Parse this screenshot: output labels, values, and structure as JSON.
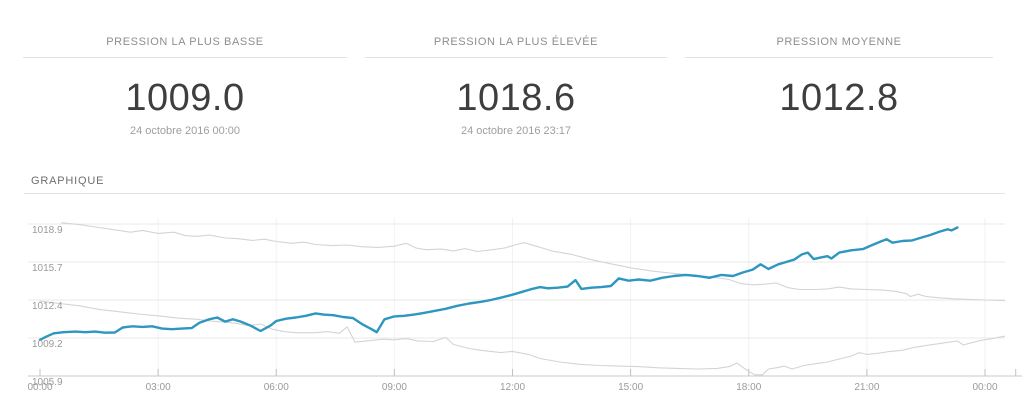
{
  "stats": [
    {
      "title": "PRESSION LA PLUS BASSE",
      "value": "1009.0",
      "date": "24 octobre 2016 00:00"
    },
    {
      "title": "PRESSION LA PLUS ÉLEVÉE",
      "value": "1018.6",
      "date": "24 octobre 2016 23:17"
    },
    {
      "title": "PRESSION MOYENNE",
      "value": "1012.8",
      "date": ""
    }
  ],
  "section": {
    "title": "GRAPHIQUE"
  },
  "colors": {
    "accent_line": "#2e96bf",
    "band_line": "#d4d4d4",
    "grid_h": "#e8e8e8",
    "grid_v": "#f2f2f2",
    "axis": "#c9c9c9",
    "tick": "#c0c0c0",
    "axis_text": "#9a9a9a"
  },
  "chart_data": {
    "type": "line",
    "title": "GRAPHIQUE",
    "xlabel": "",
    "ylabel": "",
    "grid": true,
    "legend": "none",
    "xlim_hours": [
      -0.3,
      24.9
    ],
    "ylim": [
      1005.9,
      1019.3
    ],
    "x_ticks": [
      {
        "hour": 0,
        "label": "00:00"
      },
      {
        "hour": 3,
        "label": "03:00"
      },
      {
        "hour": 6,
        "label": "06:00"
      },
      {
        "hour": 9,
        "label": "09:00"
      },
      {
        "hour": 12,
        "label": "12:00"
      },
      {
        "hour": 15,
        "label": "15:00"
      },
      {
        "hour": 18,
        "label": "18:00"
      },
      {
        "hour": 21,
        "label": "21:00"
      },
      {
        "hour": 24,
        "label": "00:00"
      },
      {
        "hour": 24.78,
        "label": ""
      }
    ],
    "y_ticks": [
      {
        "value": 1018.9,
        "label": "1018.9"
      },
      {
        "value": 1015.65,
        "label": "1015.7"
      },
      {
        "value": 1012.4,
        "label": "1012.4"
      },
      {
        "value": 1009.15,
        "label": "1009.2"
      },
      {
        "value": 1005.9,
        "label": "1005.9"
      }
    ],
    "series": [
      {
        "name": "pression",
        "role": "main",
        "color": "#2e96bf",
        "stroke_width": 2.4,
        "points": [
          [
            0,
            1009.0
          ],
          [
            0.15,
            1009.25
          ],
          [
            0.35,
            1009.55
          ],
          [
            0.6,
            1009.65
          ],
          [
            0.9,
            1009.7
          ],
          [
            1.15,
            1009.65
          ],
          [
            1.4,
            1009.7
          ],
          [
            1.65,
            1009.6
          ],
          [
            1.9,
            1009.62
          ],
          [
            2.1,
            1010.05
          ],
          [
            2.35,
            1010.15
          ],
          [
            2.6,
            1010.1
          ],
          [
            2.85,
            1010.15
          ],
          [
            3.1,
            1009.95
          ],
          [
            3.35,
            1009.9
          ],
          [
            3.6,
            1009.95
          ],
          [
            3.85,
            1010.0
          ],
          [
            4.05,
            1010.45
          ],
          [
            4.3,
            1010.75
          ],
          [
            4.5,
            1010.9
          ],
          [
            4.7,
            1010.55
          ],
          [
            4.9,
            1010.75
          ],
          [
            5.1,
            1010.55
          ],
          [
            5.35,
            1010.2
          ],
          [
            5.6,
            1009.75
          ],
          [
            5.85,
            1010.2
          ],
          [
            6.0,
            1010.6
          ],
          [
            6.25,
            1010.8
          ],
          [
            6.5,
            1010.9
          ],
          [
            6.75,
            1011.05
          ],
          [
            7.0,
            1011.25
          ],
          [
            7.2,
            1011.15
          ],
          [
            7.45,
            1011.1
          ],
          [
            7.7,
            1010.95
          ],
          [
            7.95,
            1010.85
          ],
          [
            8.2,
            1010.3
          ],
          [
            8.45,
            1009.85
          ],
          [
            8.55,
            1009.65
          ],
          [
            8.75,
            1010.75
          ],
          [
            9.0,
            1011.0
          ],
          [
            9.25,
            1011.05
          ],
          [
            9.5,
            1011.15
          ],
          [
            9.75,
            1011.3
          ],
          [
            10.0,
            1011.45
          ],
          [
            10.3,
            1011.65
          ],
          [
            10.6,
            1011.9
          ],
          [
            10.9,
            1012.1
          ],
          [
            11.2,
            1012.25
          ],
          [
            11.45,
            1012.4
          ],
          [
            11.7,
            1012.6
          ],
          [
            12.0,
            1012.85
          ],
          [
            12.25,
            1013.1
          ],
          [
            12.5,
            1013.35
          ],
          [
            12.7,
            1013.5
          ],
          [
            12.9,
            1013.4
          ],
          [
            13.15,
            1013.45
          ],
          [
            13.4,
            1013.55
          ],
          [
            13.6,
            1014.1
          ],
          [
            13.75,
            1013.35
          ],
          [
            14.0,
            1013.45
          ],
          [
            14.25,
            1013.5
          ],
          [
            14.5,
            1013.6
          ],
          [
            14.7,
            1014.25
          ],
          [
            14.95,
            1014.05
          ],
          [
            15.2,
            1014.15
          ],
          [
            15.5,
            1014.05
          ],
          [
            15.8,
            1014.3
          ],
          [
            16.1,
            1014.45
          ],
          [
            16.4,
            1014.55
          ],
          [
            16.7,
            1014.45
          ],
          [
            17.0,
            1014.3
          ],
          [
            17.3,
            1014.55
          ],
          [
            17.6,
            1014.45
          ],
          [
            17.85,
            1014.75
          ],
          [
            18.1,
            1015.0
          ],
          [
            18.3,
            1015.45
          ],
          [
            18.5,
            1015.05
          ],
          [
            18.75,
            1015.45
          ],
          [
            18.95,
            1015.65
          ],
          [
            19.15,
            1015.85
          ],
          [
            19.35,
            1016.3
          ],
          [
            19.5,
            1016.45
          ],
          [
            19.65,
            1015.9
          ],
          [
            19.85,
            1016.05
          ],
          [
            20.0,
            1016.15
          ],
          [
            20.1,
            1015.95
          ],
          [
            20.3,
            1016.45
          ],
          [
            20.6,
            1016.65
          ],
          [
            20.9,
            1016.75
          ],
          [
            21.1,
            1017.05
          ],
          [
            21.35,
            1017.4
          ],
          [
            21.5,
            1017.6
          ],
          [
            21.65,
            1017.3
          ],
          [
            21.9,
            1017.45
          ],
          [
            22.15,
            1017.5
          ],
          [
            22.35,
            1017.7
          ],
          [
            22.6,
            1017.95
          ],
          [
            22.85,
            1018.25
          ],
          [
            23.05,
            1018.45
          ],
          [
            23.15,
            1018.35
          ],
          [
            23.3,
            1018.6
          ]
        ]
      },
      {
        "name": "bande-superieure",
        "role": "upper-band",
        "color": "#d4d4d4",
        "stroke_width": 1.1,
        "points": [
          [
            0.55,
            1019.0
          ],
          [
            1.0,
            1018.85
          ],
          [
            1.5,
            1018.6
          ],
          [
            2.0,
            1018.35
          ],
          [
            2.3,
            1018.2
          ],
          [
            2.6,
            1018.35
          ],
          [
            3.0,
            1018.1
          ],
          [
            3.4,
            1018.2
          ],
          [
            3.7,
            1017.9
          ],
          [
            4.0,
            1017.85
          ],
          [
            4.3,
            1017.95
          ],
          [
            4.7,
            1017.7
          ],
          [
            5.0,
            1017.65
          ],
          [
            5.4,
            1017.5
          ],
          [
            5.7,
            1017.6
          ],
          [
            6.0,
            1017.4
          ],
          [
            6.4,
            1017.25
          ],
          [
            6.7,
            1017.35
          ],
          [
            7.0,
            1017.15
          ],
          [
            7.4,
            1017.05
          ],
          [
            7.8,
            1017.1
          ],
          [
            8.2,
            1016.95
          ],
          [
            8.6,
            1016.9
          ],
          [
            9.0,
            1017.0
          ],
          [
            9.3,
            1017.25
          ],
          [
            9.55,
            1016.85
          ],
          [
            9.8,
            1016.7
          ],
          [
            10.2,
            1016.75
          ],
          [
            10.5,
            1016.6
          ],
          [
            10.8,
            1016.8
          ],
          [
            11.1,
            1016.55
          ],
          [
            11.5,
            1016.7
          ],
          [
            11.8,
            1016.85
          ],
          [
            12.1,
            1017.15
          ],
          [
            12.3,
            1017.3
          ],
          [
            12.6,
            1017.0
          ],
          [
            13.0,
            1016.6
          ],
          [
            13.5,
            1016.3
          ],
          [
            14.0,
            1015.85
          ],
          [
            14.5,
            1015.5
          ],
          [
            15.0,
            1015.15
          ],
          [
            15.5,
            1014.9
          ],
          [
            16.0,
            1014.7
          ],
          [
            16.5,
            1014.55
          ],
          [
            17.0,
            1014.4
          ],
          [
            17.5,
            1014.15
          ],
          [
            17.8,
            1013.8
          ],
          [
            18.1,
            1013.7
          ],
          [
            18.4,
            1013.75
          ],
          [
            18.7,
            1013.85
          ],
          [
            19.0,
            1013.45
          ],
          [
            19.3,
            1013.3
          ],
          [
            19.7,
            1013.3
          ],
          [
            20.0,
            1013.35
          ],
          [
            20.3,
            1013.5
          ],
          [
            20.6,
            1013.35
          ],
          [
            21.0,
            1013.3
          ],
          [
            21.4,
            1013.25
          ],
          [
            21.7,
            1013.15
          ],
          [
            22.0,
            1012.95
          ],
          [
            22.1,
            1012.7
          ],
          [
            22.3,
            1012.9
          ],
          [
            22.5,
            1012.7
          ],
          [
            22.8,
            1012.6
          ],
          [
            23.2,
            1012.5
          ],
          [
            23.6,
            1012.45
          ],
          [
            24.0,
            1012.4
          ],
          [
            24.5,
            1012.35
          ]
        ]
      },
      {
        "name": "bande-inferieure",
        "role": "lower-band",
        "color": "#d4d4d4",
        "stroke_width": 1.1,
        "points": [
          [
            0,
            1012.3
          ],
          [
            0.5,
            1012.1
          ],
          [
            1.0,
            1011.9
          ],
          [
            1.5,
            1011.6
          ],
          [
            2.0,
            1011.4
          ],
          [
            2.5,
            1011.2
          ],
          [
            3.0,
            1011.05
          ],
          [
            3.5,
            1010.85
          ],
          [
            4.0,
            1010.75
          ],
          [
            4.3,
            1010.6
          ],
          [
            4.7,
            1010.5
          ],
          [
            5.0,
            1010.4
          ],
          [
            5.3,
            1010.2
          ],
          [
            5.6,
            1010.35
          ],
          [
            5.9,
            1009.9
          ],
          [
            6.2,
            1009.7
          ],
          [
            6.5,
            1009.6
          ],
          [
            7.0,
            1009.6
          ],
          [
            7.3,
            1009.7
          ],
          [
            7.6,
            1009.55
          ],
          [
            7.8,
            1010.1
          ],
          [
            8.0,
            1008.8
          ],
          [
            8.3,
            1008.9
          ],
          [
            8.7,
            1009.05
          ],
          [
            9.0,
            1009.0
          ],
          [
            9.3,
            1009.1
          ],
          [
            9.6,
            1008.9
          ],
          [
            10.0,
            1008.85
          ],
          [
            10.3,
            1009.2
          ],
          [
            10.5,
            1008.6
          ],
          [
            10.9,
            1008.25
          ],
          [
            11.2,
            1008.1
          ],
          [
            11.7,
            1007.9
          ],
          [
            12.0,
            1008.0
          ],
          [
            12.4,
            1007.75
          ],
          [
            12.7,
            1007.4
          ],
          [
            13.2,
            1007.1
          ],
          [
            13.7,
            1006.9
          ],
          [
            14.2,
            1006.8
          ],
          [
            14.7,
            1006.75
          ],
          [
            15.2,
            1006.7
          ],
          [
            15.7,
            1006.6
          ],
          [
            16.2,
            1006.55
          ],
          [
            16.7,
            1006.5
          ],
          [
            17.2,
            1006.55
          ],
          [
            17.5,
            1006.7
          ],
          [
            17.7,
            1007.0
          ],
          [
            17.95,
            1006.4
          ],
          [
            18.15,
            1006.0
          ],
          [
            18.35,
            1006.0
          ],
          [
            18.5,
            1006.5
          ],
          [
            18.7,
            1006.6
          ],
          [
            18.9,
            1006.75
          ],
          [
            19.1,
            1006.5
          ],
          [
            19.4,
            1006.8
          ],
          [
            19.7,
            1006.95
          ],
          [
            20.0,
            1007.1
          ],
          [
            20.3,
            1007.35
          ],
          [
            20.6,
            1007.6
          ],
          [
            20.8,
            1007.9
          ],
          [
            21.0,
            1007.75
          ],
          [
            21.3,
            1007.85
          ],
          [
            21.6,
            1008.0
          ],
          [
            21.9,
            1008.1
          ],
          [
            22.2,
            1008.35
          ],
          [
            22.5,
            1008.5
          ],
          [
            22.8,
            1008.65
          ],
          [
            23.1,
            1008.8
          ],
          [
            23.3,
            1008.9
          ],
          [
            23.45,
            1008.55
          ],
          [
            23.6,
            1008.7
          ],
          [
            23.9,
            1008.95
          ],
          [
            24.1,
            1009.05
          ],
          [
            24.5,
            1009.3
          ]
        ]
      }
    ]
  }
}
